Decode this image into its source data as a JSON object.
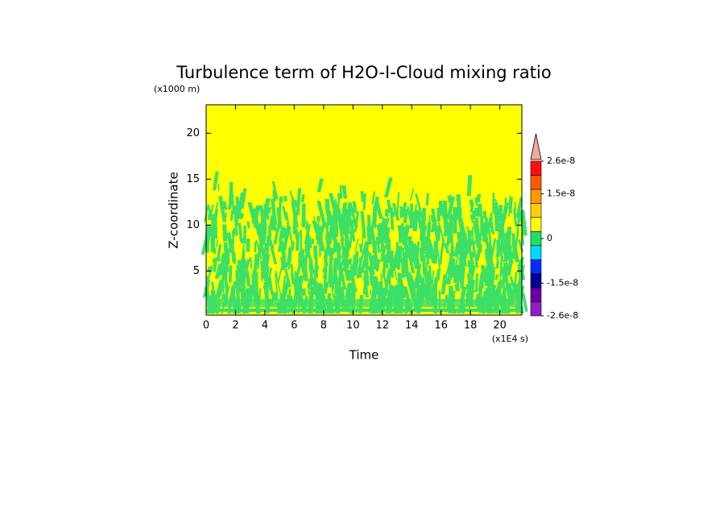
{
  "chart_data": {
    "type": "contour",
    "title": "Turbulence term of H2O-I-Cloud mixing ratio",
    "x_label": "Time",
    "x_unit": "(x1E4 s)",
    "y_label": "Z-coordinate",
    "y_unit": "(x1000 m)",
    "xlim": [
      0,
      21.5
    ],
    "xticks": [
      0,
      2,
      4,
      6,
      8,
      10,
      12,
      14,
      16,
      18,
      20
    ],
    "ylim": [
      0.2,
      23.1
    ],
    "yticks": [
      5,
      10,
      15,
      20
    ],
    "background_color": "#ffff00",
    "pattern_color": "#3ce066",
    "colorbar": {
      "clim": [
        -2.6e-08,
        2.6e-08
      ],
      "ticks": [
        {
          "value": 2.6e-08,
          "label": "2.6e-8"
        },
        {
          "value": 1.5e-08,
          "label": "1.5e-8"
        },
        {
          "value": 0,
          "label": "0"
        },
        {
          "value": -1.5e-08,
          "label": "-1.5e-8"
        },
        {
          "value": -2.6e-08,
          "label": "-2.6e-8"
        }
      ],
      "colors": [
        "#8c1ec8",
        "#6a00a8",
        "#00009c",
        "#0030ff",
        "#00d8ff",
        "#20e060",
        "#ffff00",
        "#ffd000",
        "#ff9a00",
        "#ff5a00",
        "#ff1010"
      ],
      "extend_color": "#f4a8a0"
    }
  }
}
